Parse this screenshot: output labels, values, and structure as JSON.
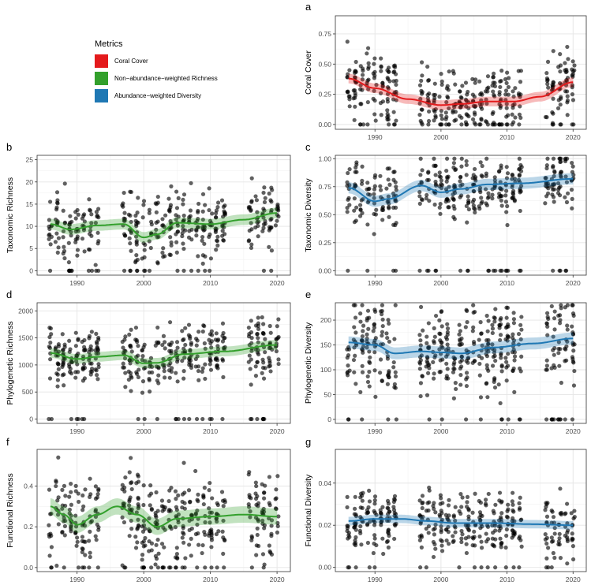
{
  "legend": {
    "title": "Metrics",
    "items": [
      {
        "label": "Coral Cover",
        "color": "#e41a1c"
      },
      {
        "label": "Non−abundance−weighted Richness",
        "color": "#33a02c"
      },
      {
        "label": "Abundance−weighted Diversity",
        "color": "#1f78b4"
      }
    ]
  },
  "chart_data": [
    {
      "panel": "a",
      "type": "scatter",
      "ylabel": "Coral Cover",
      "color": "#e41a1c",
      "xlim": [
        1984,
        2022
      ],
      "ylim": [
        -0.04,
        0.9
      ],
      "yticks": [
        0,
        0.25,
        0.5,
        0.75
      ],
      "ytick_labels": [
        "0.00",
        "0.25",
        "0.50",
        "0.75"
      ],
      "xticks": [
        1990,
        2000,
        2010,
        2020
      ],
      "xtick_labels": [
        "1990",
        "2000",
        "2010",
        "2020"
      ],
      "trend_x": [
        1986,
        1990,
        1995,
        2000,
        2003,
        2007,
        2011,
        2015,
        2020
      ],
      "trend_y": [
        0.38,
        0.3,
        0.21,
        0.16,
        0.17,
        0.19,
        0.19,
        0.23,
        0.35
      ],
      "band": 0.04,
      "ymin": 0,
      "ymax": 0.88,
      "spread": 0.18,
      "seed": 11
    },
    {
      "panel": "b",
      "type": "scatter",
      "ylabel": "Taxonomic Richness",
      "color": "#33a02c",
      "xlim": [
        1984,
        2022
      ],
      "ylim": [
        -1,
        26
      ],
      "yticks": [
        0,
        5,
        10,
        15,
        20,
        25
      ],
      "ytick_labels": [
        "0",
        "5",
        "10",
        "15",
        "20",
        "25"
      ],
      "xticks": [
        1990,
        2000,
        2010,
        2020
      ],
      "xtick_labels": [
        "1990",
        "2000",
        "2010",
        "2020"
      ],
      "trend_x": [
        1986,
        1989,
        1993,
        1997,
        2000,
        2002,
        2005,
        2010,
        2015,
        2020
      ],
      "trend_y": [
        10.5,
        9.3,
        10.2,
        10.5,
        7.5,
        8.2,
        10.8,
        10.5,
        11.5,
        13
      ],
      "band": 1.2,
      "ymin": 0,
      "ymax": 25,
      "spread": 4.5,
      "seed": 23
    },
    {
      "panel": "c",
      "type": "scatter",
      "ylabel": "Taxonomic Diversity",
      "color": "#1f78b4",
      "xlim": [
        1984,
        2022
      ],
      "ylim": [
        -0.04,
        1.03
      ],
      "yticks": [
        0,
        0.25,
        0.5,
        0.75,
        1
      ],
      "ytick_labels": [
        "0.00",
        "0.25",
        "0.50",
        "0.75",
        "1.00"
      ],
      "xticks": [
        1990,
        2000,
        2010,
        2020
      ],
      "xtick_labels": [
        "1990",
        "2000",
        "2010",
        "2020"
      ],
      "trend_x": [
        1986,
        1990,
        1992,
        1997,
        2000,
        2003,
        2007,
        2012,
        2020
      ],
      "trend_y": [
        0.74,
        0.62,
        0.64,
        0.76,
        0.7,
        0.73,
        0.77,
        0.78,
        0.82
      ],
      "band": 0.05,
      "ymin": 0,
      "ymax": 1.0,
      "spread": 0.17,
      "seed": 37
    },
    {
      "panel": "d",
      "type": "scatter",
      "ylabel": "Phylogenetic Richness",
      "color": "#33a02c",
      "xlim": [
        1984,
        2022
      ],
      "ylim": [
        -80,
        2150
      ],
      "yticks": [
        0,
        500,
        1000,
        1500,
        2000
      ],
      "ytick_labels": [
        "0",
        "500",
        "1000",
        "1500",
        "2000"
      ],
      "xticks": [
        1990,
        2000,
        2010,
        2020
      ],
      "xtick_labels": [
        "1990",
        "2000",
        "2010",
        "2020"
      ],
      "trend_x": [
        1986,
        1990,
        1993,
        1997,
        2000,
        2002,
        2006,
        2012,
        2020
      ],
      "trend_y": [
        1220,
        1110,
        1150,
        1180,
        1030,
        1040,
        1200,
        1250,
        1370
      ],
      "band": 90,
      "ymin": 0,
      "ymax": 2100,
      "spread": 320,
      "seed": 41
    },
    {
      "panel": "e",
      "type": "scatter",
      "ylabel": "Phylogenetic Diversity",
      "color": "#1f78b4",
      "xlim": [
        1984,
        2022
      ],
      "ylim": [
        -8,
        235
      ],
      "yticks": [
        0,
        50,
        100,
        150,
        200
      ],
      "ytick_labels": [
        "0",
        "50",
        "100",
        "150",
        "200"
      ],
      "xticks": [
        1990,
        2000,
        2010,
        2020
      ],
      "xtick_labels": [
        "1990",
        "2000",
        "2010",
        "2020"
      ],
      "trend_x": [
        1986,
        1990,
        1993,
        1997,
        2000,
        2003,
        2008,
        2014,
        2020
      ],
      "trend_y": [
        155,
        150,
        133,
        137,
        135,
        133,
        145,
        153,
        163
      ],
      "band": 12,
      "ymin": 0,
      "ymax": 230,
      "spread": 55,
      "seed": 53
    },
    {
      "panel": "f",
      "type": "scatter",
      "ylabel": "Functional Richness",
      "color": "#33a02c",
      "xlim": [
        1984,
        2022
      ],
      "ylim": [
        -0.02,
        0.58
      ],
      "yticks": [
        0,
        0.2,
        0.4
      ],
      "ytick_labels": [
        "0.0",
        "0.2",
        "0.4"
      ],
      "xticks": [
        1990,
        2000,
        2010,
        2020
      ],
      "xtick_labels": [
        "1990",
        "2000",
        "2010",
        "2020"
      ],
      "trend_x": [
        1986,
        1988,
        1990,
        1993,
        1996,
        1999,
        2002,
        2005,
        2010,
        2015,
        2020
      ],
      "trend_y": [
        0.3,
        0.26,
        0.21,
        0.26,
        0.3,
        0.26,
        0.2,
        0.24,
        0.25,
        0.26,
        0.25
      ],
      "band": 0.04,
      "ymin": 0,
      "ymax": 0.56,
      "spread": 0.14,
      "seed": 67
    },
    {
      "panel": "g",
      "type": "scatter",
      "ylabel": "Functional Diversity",
      "color": "#1f78b4",
      "xlim": [
        1984,
        2022
      ],
      "ylim": [
        -0.002,
        0.056
      ],
      "yticks": [
        0,
        0.02,
        0.04
      ],
      "ytick_labels": [
        "0.00",
        "0.02",
        "0.04"
      ],
      "xticks": [
        1990,
        2000,
        2010,
        2020
      ],
      "xtick_labels": [
        "1990",
        "2000",
        "2010",
        "2020"
      ],
      "trend_x": [
        1986,
        1990,
        1994,
        1998,
        2002,
        2008,
        2014,
        2020
      ],
      "trend_y": [
        0.022,
        0.023,
        0.023,
        0.022,
        0.021,
        0.021,
        0.0205,
        0.02
      ],
      "band": 0.002,
      "ymin": 0,
      "ymax": 0.054,
      "spread": 0.009,
      "seed": 79
    }
  ]
}
